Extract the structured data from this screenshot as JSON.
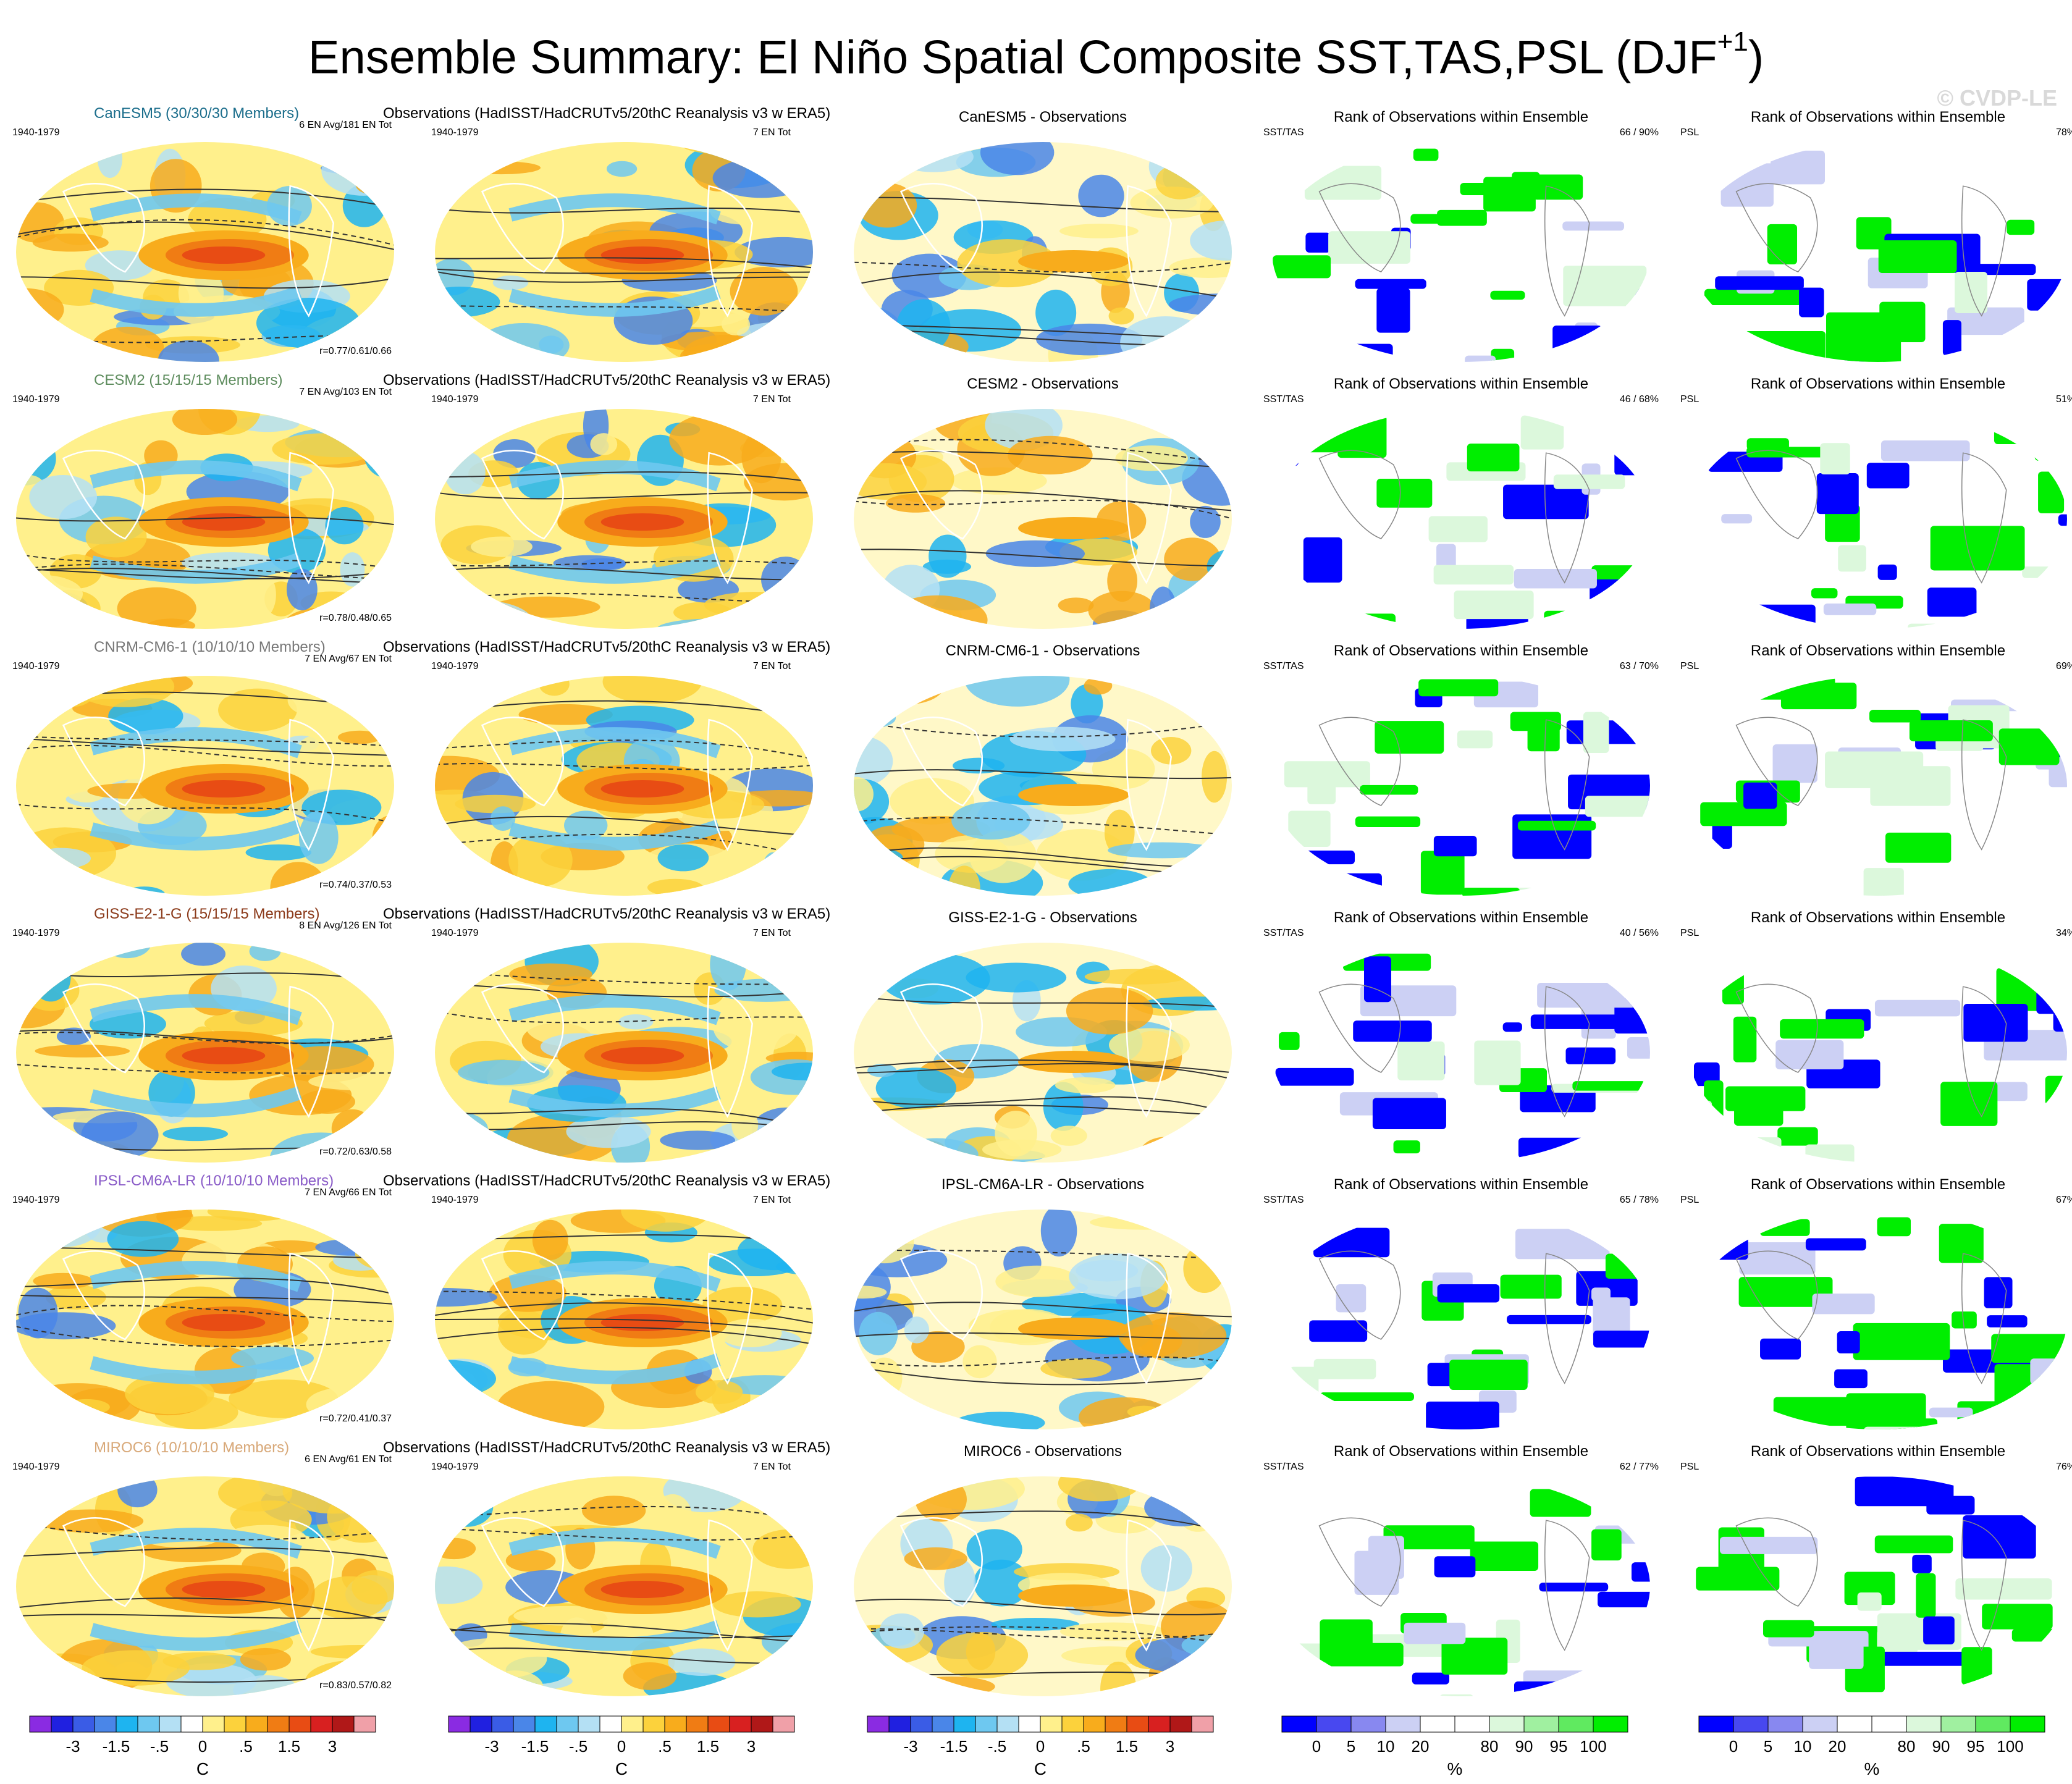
{
  "title": "Ensemble Summary: El Niño Spatial Composite SST,TAS,PSL (DJF",
  "title_sup": "+1",
  "title_end": ")",
  "watermark": "© CVDP-LE",
  "obs_title": "Observations (HadISST/HadCRUTv5/20thC Reanalysis v3 w ERA5)",
  "period": "1940-1979",
  "obs_count": "7 EN Tot",
  "rank_title": "Rank of Observations within Ensemble",
  "sst_tas_label": "SST/TAS",
  "psl_label": "PSL",
  "chart_data": {
    "type": "heatmap",
    "models": [
      {
        "name": "CanESM5 (30/30/30 Members)",
        "short": "CanESM5",
        "color": "#1c6e8c",
        "diff_title": "CanESM5 - Observations",
        "stats": "6 EN Avg/181 EN Tot",
        "r": "r=0.77/0.61/0.66",
        "rank_sst": "66 /  90%",
        "rank_psl": "78%"
      },
      {
        "name": "CESM2 (15/15/15 Members)",
        "short": "CESM2",
        "color": "#5d8c5d",
        "diff_title": "CESM2 - Observations",
        "stats": "7 EN Avg/103 EN Tot",
        "r": "r=0.78/0.48/0.65",
        "rank_sst": "46 /  68%",
        "rank_psl": "51%"
      },
      {
        "name": "CNRM-CM6-1 (10/10/10 Members)",
        "short": "CNRM-CM6-1",
        "color": "#777777",
        "diff_title": "CNRM-CM6-1 - Observations",
        "stats": "7 EN Avg/67 EN Tot",
        "r": "r=0.74/0.37/0.53",
        "rank_sst": "63 /  70%",
        "rank_psl": "69%"
      },
      {
        "name": "GISS-E2-1-G (15/15/15 Members)",
        "short": "GISS-E2-1-G",
        "color": "#8b3a1a",
        "diff_title": "GISS-E2-1-G - Observations",
        "stats": "8 EN Avg/126 EN Tot",
        "r": "r=0.72/0.63/0.58",
        "rank_sst": "40 /  56%",
        "rank_psl": "34%"
      },
      {
        "name": "IPSL-CM6A-LR (10/10/10 Members)",
        "short": "IPSL-CM6A-LR",
        "color": "#8a5cc8",
        "diff_title": "IPSL-CM6A-LR - Observations",
        "stats": "7 EN Avg/66 EN Tot",
        "r": "r=0.72/0.41/0.37",
        "rank_sst": "65 /  78%",
        "rank_psl": "67%"
      },
      {
        "name": "MIROC6 (10/10/10 Members)",
        "short": "MIROC6",
        "color": "#d8a878",
        "diff_title": "MIROC6 - Observations",
        "stats": "6 EN Avg/61 EN Tot",
        "r": "r=0.83/0.57/0.82",
        "rank_sst": "62 /  77%",
        "rank_psl": "76%"
      }
    ],
    "temp_colorbar": {
      "colors": [
        "#8a2be2",
        "#2020e0",
        "#3a5ce6",
        "#4a86e8",
        "#1eb4f0",
        "#6ec8f0",
        "#b4e0f4",
        "#ffffff",
        "#fff08c",
        "#fcd23c",
        "#f8ac1c",
        "#f07c14",
        "#e84c14",
        "#d82020",
        "#b01818",
        "#f0a0a8"
      ],
      "tick_labels": [
        "-3",
        "-1.5",
        "-.5",
        "0",
        ".5",
        "1.5",
        "3"
      ],
      "unit": "C"
    },
    "rank_colorbar": {
      "colors": [
        "#0000ff",
        "#4848f0",
        "#8888f0",
        "#ccd0f4",
        "#ffffff",
        "#ffffff",
        "#dcf8dc",
        "#a0f0a0",
        "#60ea60",
        "#00ee00"
      ],
      "tick_labels": [
        "0",
        "5",
        "10",
        "20",
        "80",
        "90",
        "95",
        "100"
      ],
      "unit": "%"
    }
  }
}
